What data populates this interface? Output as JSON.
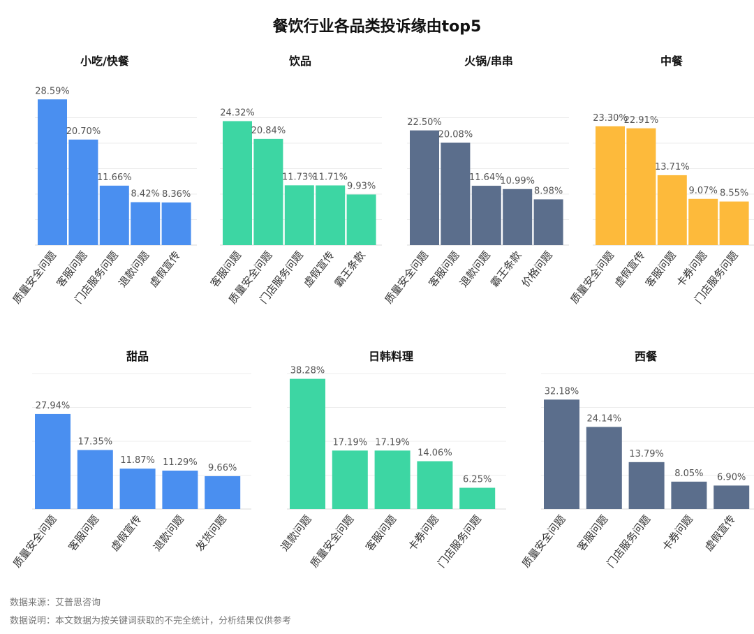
{
  "title": "餐饮行业各品类投诉缘由top5",
  "source": "数据来源：艾普思咨询",
  "note": "数据说明：本文数据为按关键词获取的不完全统计，分析结果仅供参考",
  "colors": {
    "blue": "#4A8FF0",
    "green": "#3DD6A3",
    "slate": "#5B6E8C",
    "orange": "#FDBA3B"
  },
  "chart_data": [
    {
      "type": "bar",
      "title": "小吃/快餐",
      "color": "#4A8FF0",
      "categories": [
        "质量安全问题",
        "客服问题",
        "门店服务问题",
        "退款问题",
        "虚假宣传"
      ],
      "values": [
        28.59,
        20.7,
        11.66,
        8.42,
        8.36
      ],
      "labels": [
        "28.59%",
        "20.70%",
        "11.66%",
        "8.42%",
        "8.36%"
      ]
    },
    {
      "type": "bar",
      "title": "饮品",
      "color": "#3DD6A3",
      "categories": [
        "客服问题",
        "质量安全问题",
        "门店服务问题",
        "虚假宣传",
        "霸王条款"
      ],
      "values": [
        24.32,
        20.84,
        11.73,
        11.71,
        9.93
      ],
      "labels": [
        "24.32%",
        "20.84%",
        "11.73%",
        "11.71%",
        "9.93%"
      ]
    },
    {
      "type": "bar",
      "title": "火锅/串串",
      "color": "#5B6E8C",
      "categories": [
        "质量安全问题",
        "客服问题",
        "退款问题",
        "霸王条款",
        "价格问题"
      ],
      "values": [
        22.5,
        20.08,
        11.64,
        10.99,
        8.98
      ],
      "labels": [
        "22.50%",
        "20.08%",
        "11.64%",
        "10.99%",
        "8.98%"
      ]
    },
    {
      "type": "bar",
      "title": "中餐",
      "color": "#FDBA3B",
      "categories": [
        "质量安全问题",
        "虚假宣传",
        "客服问题",
        "卡券问题",
        "门店服务问题"
      ],
      "values": [
        23.3,
        22.91,
        13.71,
        9.07,
        8.55
      ],
      "labels": [
        "23.30%",
        "22.91%",
        "13.71%",
        "9.07%",
        "8.55%"
      ]
    },
    {
      "type": "bar",
      "title": "甜品",
      "color": "#4A8FF0",
      "categories": [
        "质量安全问题",
        "客服问题",
        "虚假宣传",
        "退款问题",
        "发货问题"
      ],
      "values": [
        27.94,
        17.35,
        11.87,
        11.29,
        9.66
      ],
      "labels": [
        "27.94%",
        "17.35%",
        "11.87%",
        "11.29%",
        "9.66%"
      ]
    },
    {
      "type": "bar",
      "title": "日韩料理",
      "color": "#3DD6A3",
      "categories": [
        "退款问题",
        "质量安全问题",
        "客服问题",
        "卡券问题",
        "门店服务问题"
      ],
      "values": [
        38.28,
        17.19,
        17.19,
        14.06,
        6.25
      ],
      "labels": [
        "38.28%",
        "17.19%",
        "17.19%",
        "14.06%",
        "6.25%"
      ]
    },
    {
      "type": "bar",
      "title": "西餐",
      "color": "#5B6E8C",
      "categories": [
        "质量安全问题",
        "客服问题",
        "门店服务问题",
        "卡券问题",
        "虚假宣传"
      ],
      "values": [
        32.18,
        24.14,
        13.79,
        8.05,
        6.9
      ],
      "labels": [
        "32.18%",
        "24.14%",
        "13.79%",
        "8.05%",
        "6.90%"
      ]
    }
  ]
}
